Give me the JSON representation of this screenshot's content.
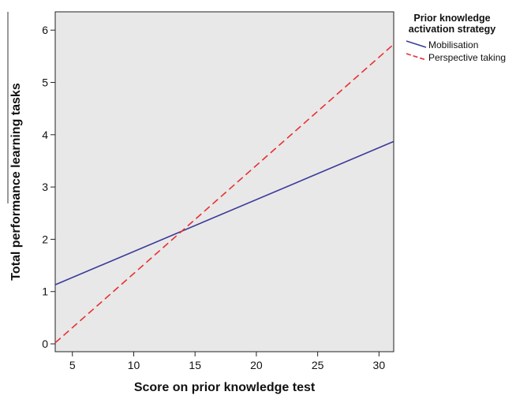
{
  "chart_data": {
    "type": "line",
    "xlabel": "Score on prior knowledge test",
    "ylabel": "Total performance learning tasks",
    "xlim": [
      3.6,
      31.2
    ],
    "ylim": [
      -0.15,
      6.35
    ],
    "xticks": [
      5,
      10,
      15,
      20,
      25,
      30
    ],
    "yticks": [
      0,
      1,
      2,
      3,
      4,
      5,
      6
    ],
    "grid": false,
    "legend": {
      "title_line1": "Prior knowledge",
      "title_line2": "activation strategy",
      "placement": "right"
    },
    "colors": {
      "plot_background": "#e8e8e8"
    },
    "series": [
      {
        "name": "Mobilisation",
        "color": "#3b3b9a",
        "dash": "solid",
        "x": [
          3.6,
          31.2
        ],
        "y": [
          1.13,
          3.87
        ]
      },
      {
        "name": "Perspective taking",
        "color": "#e83030",
        "dash": "dashed",
        "x": [
          3.6,
          31.2
        ],
        "y": [
          0.02,
          5.73
        ]
      }
    ]
  }
}
